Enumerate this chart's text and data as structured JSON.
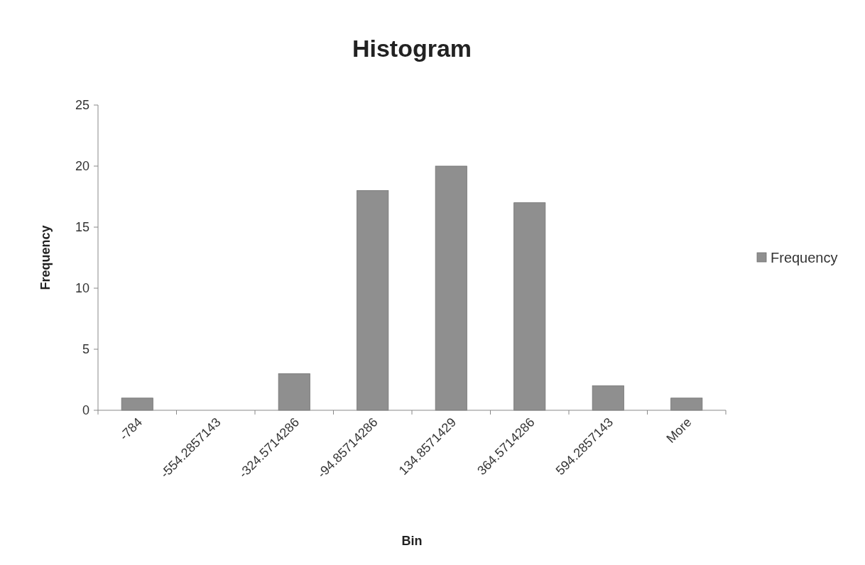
{
  "chart_data": {
    "type": "bar",
    "title": "Histogram",
    "xlabel": "Bin",
    "ylabel": "Frequency",
    "categories": [
      "-784",
      "-554.2857143",
      "-324.5714286",
      "-94.85714286",
      "134.8571429",
      "364.5714286",
      "594.2857143",
      "More"
    ],
    "series": [
      {
        "name": "Frequency",
        "color": "#8f8f8f",
        "values": [
          1,
          0,
          3,
          18,
          20,
          17,
          2,
          1
        ]
      }
    ],
    "ylim": [
      0,
      25
    ],
    "yticks": [
      0,
      5,
      10,
      15,
      20,
      25
    ],
    "grid": false,
    "legend": "right"
  }
}
